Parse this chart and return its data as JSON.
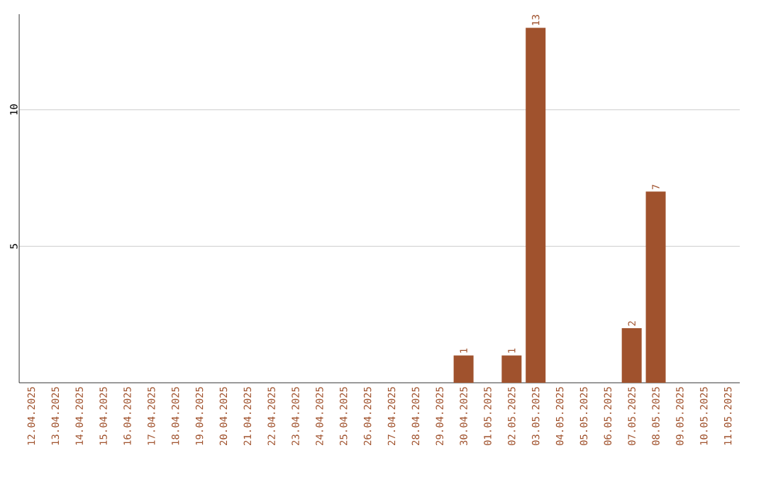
{
  "chart_data": {
    "type": "bar",
    "categories": [
      "12.04.2025",
      "13.04.2025",
      "14.04.2025",
      "15.04.2025",
      "16.04.2025",
      "17.04.2025",
      "18.04.2025",
      "19.04.2025",
      "20.04.2025",
      "21.04.2025",
      "22.04.2025",
      "23.04.2025",
      "24.04.2025",
      "25.04.2025",
      "26.04.2025",
      "27.04.2025",
      "28.04.2025",
      "29.04.2025",
      "30.04.2025",
      "01.05.2025",
      "02.05.2025",
      "03.05.2025",
      "04.05.2025",
      "05.05.2025",
      "06.05.2025",
      "07.05.2025",
      "08.05.2025",
      "09.05.2025",
      "10.05.2025",
      "11.05.2025"
    ],
    "values": [
      0,
      0,
      0,
      0,
      0,
      0,
      0,
      0,
      0,
      0,
      0,
      0,
      0,
      0,
      0,
      0,
      0,
      0,
      1,
      0,
      1,
      13,
      0,
      0,
      0,
      2,
      7,
      0,
      0,
      0
    ],
    "value_labels": [
      null,
      null,
      null,
      null,
      null,
      null,
      null,
      null,
      null,
      null,
      null,
      null,
      null,
      null,
      null,
      null,
      null,
      null,
      "1",
      null,
      "1",
      "13",
      null,
      null,
      null,
      "2",
      "7",
      null,
      null,
      null
    ],
    "color": "#a0522d",
    "ylim": [
      0,
      13.5
    ],
    "yticks": [
      5,
      10
    ],
    "grid": "y"
  }
}
